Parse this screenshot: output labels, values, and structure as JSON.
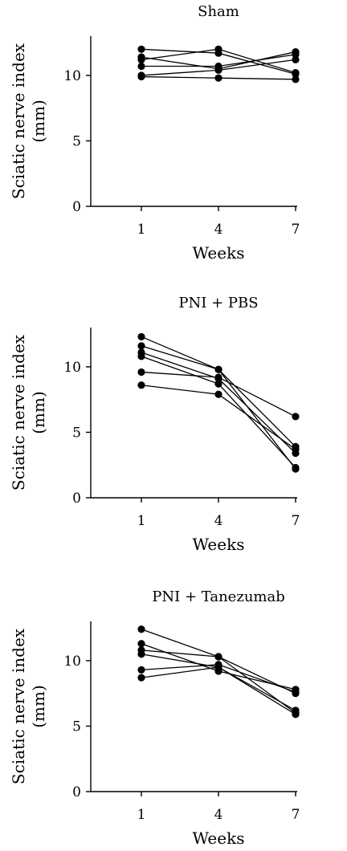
{
  "chart_data": [
    {
      "type": "line",
      "title": "Sham",
      "xlabel": "Weeks",
      "ylabel_line1": "Sciatic nerve index",
      "ylabel_line2": "(mm)",
      "categories": [
        "1",
        "4",
        "7"
      ],
      "y_ticks": [
        "0",
        "5",
        "10"
      ],
      "ylim": [
        0,
        13
      ],
      "grid": false,
      "series": [
        {
          "values": [
            12.0,
            11.7,
            10.1
          ]
        },
        {
          "values": [
            11.4,
            10.5,
            11.8
          ]
        },
        {
          "values": [
            11.2,
            12.0,
            10.2
          ]
        },
        {
          "values": [
            10.7,
            10.7,
            11.6
          ]
        },
        {
          "values": [
            10.0,
            10.4,
            11.2
          ]
        },
        {
          "values": [
            9.9,
            9.8,
            9.7
          ]
        }
      ]
    },
    {
      "type": "line",
      "title": "PNI + PBS",
      "xlabel": "Weeks",
      "ylabel_line1": "Sciatic nerve index",
      "ylabel_line2": "(mm)",
      "categories": [
        "1",
        "4",
        "7"
      ],
      "y_ticks": [
        "0",
        "5",
        "10"
      ],
      "ylim": [
        0,
        13
      ],
      "grid": false,
      "series": [
        {
          "values": [
            12.3,
            9.8,
            2.2
          ]
        },
        {
          "values": [
            11.6,
            9.8,
            3.9
          ]
        },
        {
          "values": [
            11.1,
            9.1,
            3.4
          ]
        },
        {
          "values": [
            10.8,
            8.7,
            2.3
          ]
        },
        {
          "values": [
            9.6,
            9.2,
            6.2
          ]
        },
        {
          "values": [
            8.6,
            7.9,
            3.7
          ]
        }
      ]
    },
    {
      "type": "line",
      "title": "PNI + Tanezumab",
      "xlabel": "Weeks",
      "ylabel_line1": "Sciatic nerve index",
      "ylabel_line2": "(mm)",
      "categories": [
        "1",
        "4",
        "7"
      ],
      "y_ticks": [
        "0",
        "5",
        "10"
      ],
      "ylim": [
        0,
        13
      ],
      "grid": false,
      "series": [
        {
          "values": [
            12.4,
            10.3,
            6.0
          ]
        },
        {
          "values": [
            11.3,
            9.2,
            7.8
          ]
        },
        {
          "values": [
            10.8,
            10.3,
            7.5
          ]
        },
        {
          "values": [
            10.5,
            9.5,
            6.2
          ]
        },
        {
          "values": [
            9.3,
            9.7,
            7.6
          ]
        },
        {
          "values": [
            8.7,
            9.5,
            5.9
          ]
        }
      ]
    }
  ]
}
